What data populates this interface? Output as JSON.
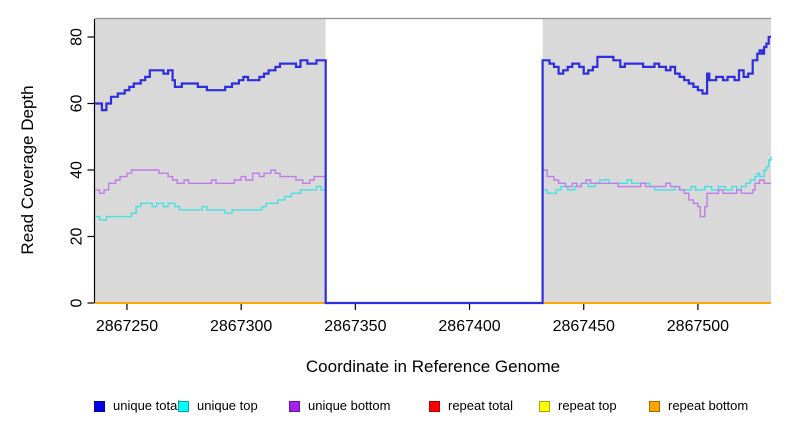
{
  "chart_data": {
    "type": "line",
    "subtype": "step-coverage",
    "title": "",
    "xlabel": "Coordinate in Reference Genome",
    "ylabel": "Read Coverage Depth",
    "xlim": [
      2867236,
      2867532
    ],
    "ylim": [
      0,
      85
    ],
    "xticks": [
      "2867250",
      "2867300",
      "2867350",
      "2867400",
      "2867450",
      "2867500"
    ],
    "xtick_values": [
      2867250,
      2867300,
      2867350,
      2867400,
      2867450,
      2867500
    ],
    "yticks": [
      "0",
      "20",
      "40",
      "60",
      "80"
    ],
    "ytick_values": [
      0,
      20,
      40,
      60,
      80
    ],
    "grid": false,
    "plot_background": "#d9d9d9",
    "top_border_color": "#8f8f8f",
    "axis_color": "#000000",
    "legend_position": "bottom",
    "masked_region": {
      "start": 2867337,
      "end": 2867432,
      "fill": "#ffffff",
      "note": "white gap region where unique coverage drops to 0"
    },
    "series": [
      {
        "name": "repeat total",
        "color": "#dd0000",
        "width": 1.4,
        "segments": [
          [
            [
              2867236,
              0
            ],
            [
              2867532,
              0
            ]
          ]
        ]
      },
      {
        "name": "repeat top",
        "color": "#eeee00",
        "width": 1.4,
        "segments": [
          [
            [
              2867236,
              0
            ],
            [
              2867532,
              0
            ]
          ]
        ]
      },
      {
        "name": "repeat bottom",
        "color": "#ffa500",
        "width": 1.7,
        "segments": [
          [
            [
              2867236,
              0
            ],
            [
              2867532,
              0
            ]
          ]
        ]
      },
      {
        "name": "unique top",
        "color": "#45e0e0",
        "width": 1.4,
        "segments": [
          [
            [
              2867236,
              26
            ],
            [
              2867238,
              25
            ],
            [
              2867241,
              26
            ],
            [
              2867252,
              27
            ],
            [
              2867254,
              29
            ],
            [
              2867256,
              30
            ],
            [
              2867261,
              29
            ],
            [
              2867263,
              30
            ],
            [
              2867266,
              29
            ],
            [
              2867268,
              30
            ],
            [
              2867271,
              29
            ],
            [
              2867273,
              28
            ],
            [
              2867283,
              29
            ],
            [
              2867285,
              28
            ],
            [
              2867293,
              27
            ],
            [
              2867296,
              28
            ],
            [
              2867306,
              28
            ],
            [
              2867309,
              29
            ],
            [
              2867311,
              30
            ],
            [
              2867316,
              31
            ],
            [
              2867319,
              32
            ],
            [
              2867322,
              33
            ],
            [
              2867326,
              34
            ],
            [
              2867331,
              34
            ],
            [
              2867333,
              35
            ],
            [
              2867335,
              34
            ],
            [
              2867337,
              34
            ]
          ],
          [
            [
              2867432,
              34
            ],
            [
              2867434,
              33
            ],
            [
              2867438,
              34
            ],
            [
              2867440,
              35
            ],
            [
              2867443,
              34
            ],
            [
              2867446,
              35
            ],
            [
              2867449,
              36
            ],
            [
              2867452,
              35
            ],
            [
              2867455,
              36
            ],
            [
              2867457,
              37
            ],
            [
              2867461,
              36
            ],
            [
              2867469,
              37
            ],
            [
              2867471,
              36
            ],
            [
              2867479,
              35
            ],
            [
              2867481,
              34
            ],
            [
              2867490,
              35
            ],
            [
              2867492,
              34
            ],
            [
              2867497,
              35
            ],
            [
              2867499,
              34
            ],
            [
              2867503,
              35
            ],
            [
              2867506,
              34
            ],
            [
              2867509,
              35
            ],
            [
              2867512,
              34
            ],
            [
              2867515,
              35
            ],
            [
              2867517,
              34
            ],
            [
              2867519,
              35
            ],
            [
              2867521,
              36
            ],
            [
              2867523,
              37
            ],
            [
              2867525,
              38
            ],
            [
              2867526,
              39
            ],
            [
              2867527,
              38
            ],
            [
              2867529,
              40
            ],
            [
              2867530,
              41
            ],
            [
              2867531,
              43
            ],
            [
              2867532,
              44
            ]
          ]
        ]
      },
      {
        "name": "unique bottom",
        "color": "#c07ce8",
        "width": 1.4,
        "segments": [
          [
            [
              2867236,
              34
            ],
            [
              2867238,
              33
            ],
            [
              2867240,
              34
            ],
            [
              2867242,
              36
            ],
            [
              2867245,
              37
            ],
            [
              2867247,
              38
            ],
            [
              2867250,
              39
            ],
            [
              2867252,
              40
            ],
            [
              2867262,
              40
            ],
            [
              2867264,
              39
            ],
            [
              2867268,
              38
            ],
            [
              2867270,
              37
            ],
            [
              2867272,
              36
            ],
            [
              2867275,
              37
            ],
            [
              2867277,
              36
            ],
            [
              2867285,
              36
            ],
            [
              2867287,
              37
            ],
            [
              2867289,
              36
            ],
            [
              2867295,
              36
            ],
            [
              2867297,
              37
            ],
            [
              2867300,
              38
            ],
            [
              2867302,
              37
            ],
            [
              2867305,
              39
            ],
            [
              2867308,
              38
            ],
            [
              2867310,
              39
            ],
            [
              2867313,
              40
            ],
            [
              2867315,
              39
            ],
            [
              2867317,
              38
            ],
            [
              2867321,
              38
            ],
            [
              2867324,
              37
            ],
            [
              2867327,
              36
            ],
            [
              2867330,
              37
            ],
            [
              2867332,
              38
            ],
            [
              2867337,
              38
            ]
          ],
          [
            [
              2867432,
              40
            ],
            [
              2867434,
              38
            ],
            [
              2867437,
              37
            ],
            [
              2867439,
              36
            ],
            [
              2867442,
              35
            ],
            [
              2867445,
              36
            ],
            [
              2867447,
              35
            ],
            [
              2867449,
              36
            ],
            [
              2867451,
              37
            ],
            [
              2867453,
              36
            ],
            [
              2867459,
              36
            ],
            [
              2867465,
              35
            ],
            [
              2867473,
              35
            ],
            [
              2867475,
              36
            ],
            [
              2867477,
              35
            ],
            [
              2867486,
              36
            ],
            [
              2867488,
              35
            ],
            [
              2867492,
              34
            ],
            [
              2867494,
              33
            ],
            [
              2867496,
              31
            ],
            [
              2867498,
              30
            ],
            [
              2867500,
              29
            ],
            [
              2867501,
              26
            ],
            [
              2867503,
              29
            ],
            [
              2867504,
              33
            ],
            [
              2867509,
              34
            ],
            [
              2867511,
              33
            ],
            [
              2867515,
              33
            ],
            [
              2867517,
              34
            ],
            [
              2867519,
              33
            ],
            [
              2867524,
              34
            ],
            [
              2867525,
              36
            ],
            [
              2867527,
              37
            ],
            [
              2867529,
              36
            ],
            [
              2867532,
              36
            ]
          ]
        ]
      },
      {
        "name": "unique total",
        "color": "#2e2ee0",
        "width": 2.2,
        "segments": [
          [
            [
              2867236,
              60
            ],
            [
              2867239,
              58
            ],
            [
              2867241,
              60
            ],
            [
              2867243,
              62
            ],
            [
              2867246,
              63
            ],
            [
              2867249,
              64
            ],
            [
              2867251,
              65
            ],
            [
              2867253,
              66
            ],
            [
              2867256,
              67
            ],
            [
              2867258,
              68
            ],
            [
              2867260,
              70
            ],
            [
              2867265,
              70
            ],
            [
              2867266,
              69
            ],
            [
              2867268,
              70
            ],
            [
              2867270,
              67
            ],
            [
              2867271,
              65
            ],
            [
              2867274,
              66
            ],
            [
              2867279,
              66
            ],
            [
              2867281,
              65
            ],
            [
              2867285,
              64
            ],
            [
              2867290,
              64
            ],
            [
              2867293,
              65
            ],
            [
              2867296,
              66
            ],
            [
              2867299,
              67
            ],
            [
              2867301,
              68
            ],
            [
              2867303,
              67
            ],
            [
              2867308,
              68
            ],
            [
              2867310,
              69
            ],
            [
              2867312,
              70
            ],
            [
              2867315,
              71
            ],
            [
              2867317,
              72
            ],
            [
              2867322,
              72
            ],
            [
              2867324,
              71
            ],
            [
              2867326,
              73
            ],
            [
              2867329,
              72
            ],
            [
              2867333,
              73
            ],
            [
              2867337,
              0
            ],
            [
              2867432,
              73
            ],
            [
              2867435,
              72
            ],
            [
              2867437,
              71
            ],
            [
              2867439,
              69
            ],
            [
              2867441,
              70
            ],
            [
              2867443,
              71
            ],
            [
              2867445,
              72
            ],
            [
              2867448,
              71
            ],
            [
              2867450,
              69
            ],
            [
              2867452,
              70
            ],
            [
              2867454,
              71
            ],
            [
              2867456,
              74
            ],
            [
              2867461,
              74
            ],
            [
              2867463,
              73
            ],
            [
              2867466,
              71
            ],
            [
              2867468,
              72
            ],
            [
              2867474,
              72
            ],
            [
              2867476,
              71
            ],
            [
              2867481,
              72
            ],
            [
              2867483,
              71
            ],
            [
              2867486,
              70
            ],
            [
              2867488,
              71
            ],
            [
              2867490,
              69
            ],
            [
              2867492,
              68
            ],
            [
              2867494,
              67
            ],
            [
              2867496,
              66
            ],
            [
              2867498,
              65
            ],
            [
              2867500,
              64
            ],
            [
              2867502,
              63
            ],
            [
              2867504,
              69
            ],
            [
              2867505,
              67
            ],
            [
              2867508,
              68
            ],
            [
              2867511,
              67
            ],
            [
              2867513,
              68
            ],
            [
              2867516,
              67
            ],
            [
              2867518,
              70
            ],
            [
              2867520,
              68
            ],
            [
              2867522,
              69
            ],
            [
              2867524,
              73
            ],
            [
              2867526,
              75
            ],
            [
              2867527,
              76
            ],
            [
              2867528,
              75
            ],
            [
              2867529,
              77
            ],
            [
              2867530,
              78
            ],
            [
              2867531,
              80
            ],
            [
              2867532,
              80
            ]
          ]
        ]
      }
    ]
  },
  "legend": {
    "items": [
      {
        "label": "unique total",
        "swatch_color": "#0000e6"
      },
      {
        "label": "unique top",
        "swatch_color": "#00ffff"
      },
      {
        "label": "unique bottom",
        "swatch_color": "#a020f0"
      },
      {
        "label": "repeat total",
        "swatch_color": "#ff0000"
      },
      {
        "label": "repeat top",
        "swatch_color": "#ffff00"
      },
      {
        "label": "repeat bottom",
        "swatch_color": "#ffa500"
      }
    ]
  }
}
